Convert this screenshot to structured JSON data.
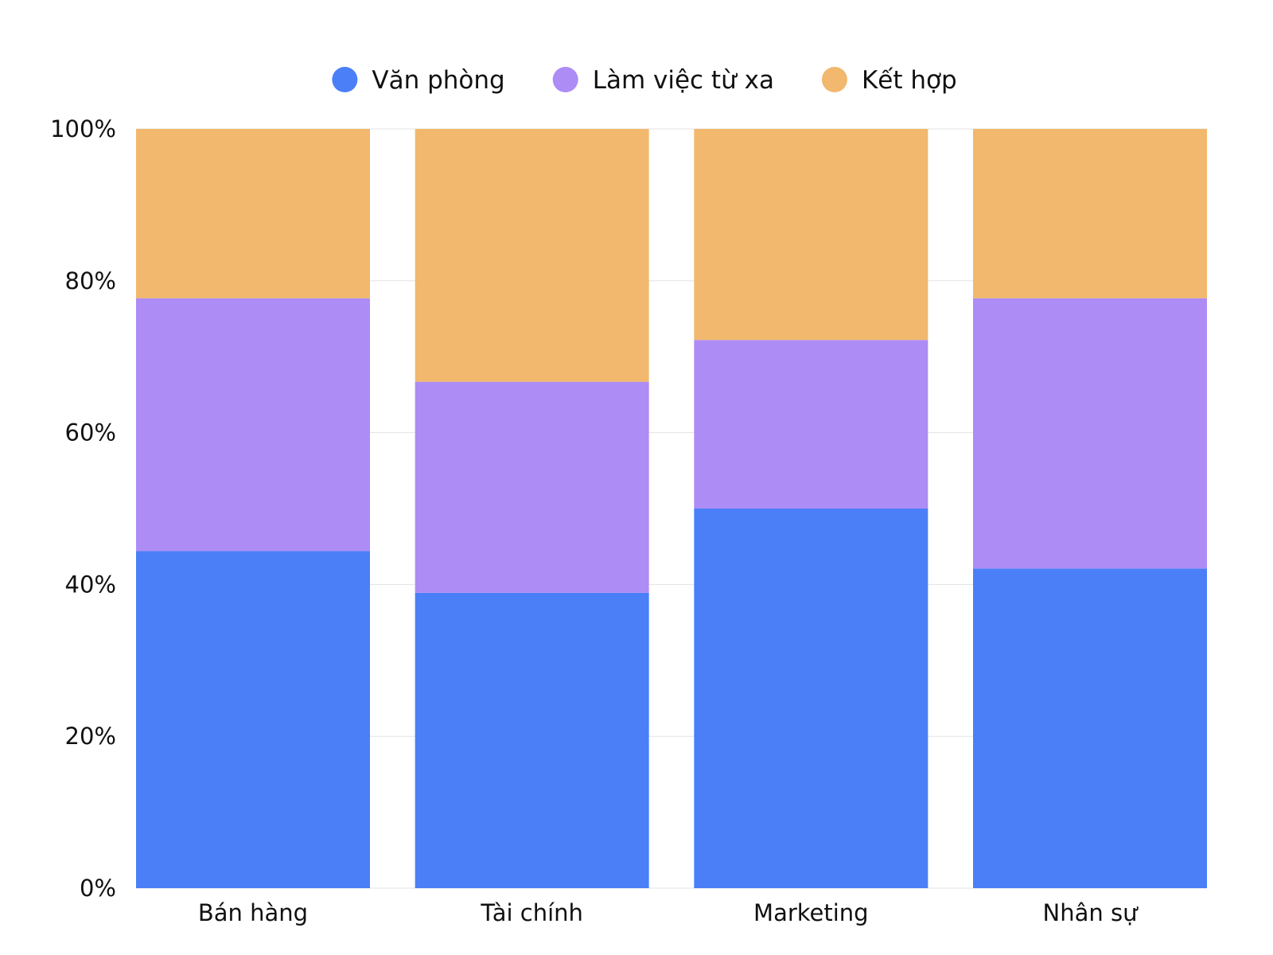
{
  "chart_data": {
    "type": "bar",
    "stacked": true,
    "categories": [
      "Bán hàng",
      "Tài chính",
      "Marketing",
      "Nhân sự"
    ],
    "series": [
      {
        "name": "Văn phòng",
        "color": "#4b7ff7",
        "values": [
          44.4,
          38.9,
          50.0,
          42.1
        ]
      },
      {
        "name": "Làm việc từ xa",
        "color": "#ad8cf5",
        "values": [
          33.3,
          27.8,
          22.2,
          35.6
        ]
      },
      {
        "name": "Kết hợp",
        "color": "#f1b86e",
        "values": [
          22.3,
          33.3,
          27.8,
          22.3
        ]
      }
    ],
    "y_ticks": [
      "0%",
      "20%",
      "40%",
      "60%",
      "80%",
      "100%"
    ],
    "ylim": [
      0,
      100
    ],
    "grid": true,
    "legend_position": "top-center",
    "title": "",
    "xlabel": "",
    "ylabel": ""
  }
}
